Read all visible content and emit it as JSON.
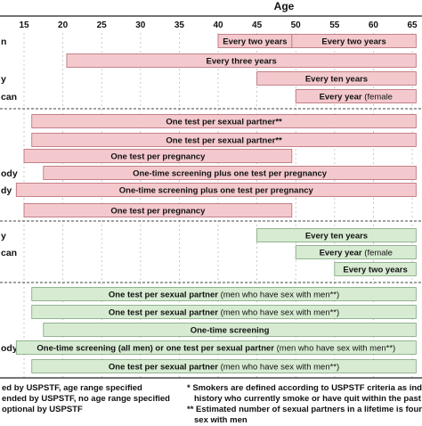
{
  "chart_data": {
    "type": "bar",
    "title": "",
    "xlabel": "Age",
    "ylabel": "",
    "xlim": [
      13,
      66
    ],
    "xticks": [
      15,
      20,
      25,
      30,
      35,
      40,
      45,
      50,
      55,
      60,
      65
    ],
    "colors": {
      "red_fill": "#f4c9cd",
      "red_edge": "#b46a72",
      "green_fill": "#d7ebd2",
      "green_edge": "#7da47a"
    },
    "row_labels": [
      "n",
      "",
      "y",
      "can",
      "",
      "",
      "",
      "ody",
      "dy",
      "",
      "y",
      "can",
      "",
      "",
      "",
      "",
      "ody",
      ""
    ],
    "bars": [
      {
        "row": 0,
        "color": "red",
        "start": 40,
        "end": 49.5,
        "label": "Every two years",
        "note": ""
      },
      {
        "row": 0,
        "color": "red",
        "start": 49.5,
        "end": 65.5,
        "label": "Every two years",
        "note": ""
      },
      {
        "row": 1,
        "color": "red",
        "start": 20.5,
        "end": 65.5,
        "label": "Every three years",
        "note": ""
      },
      {
        "row": 2,
        "color": "red",
        "start": 45,
        "end": 65.5,
        "label": "Every ten years",
        "note": ""
      },
      {
        "row": 3,
        "color": "red",
        "start": 50,
        "end": 65.5,
        "label": "Every year",
        "note": "(female"
      },
      {
        "row": 4,
        "color": "red",
        "start": 16,
        "end": 65.5,
        "label": "One test per sexual partner**",
        "note": ""
      },
      {
        "row": 5,
        "color": "red",
        "start": 16,
        "end": 65.5,
        "label": "One test per sexual partner**",
        "note": ""
      },
      {
        "row": 6,
        "color": "red",
        "start": 15,
        "end": 49.5,
        "label": "One test per pregnancy",
        "note": ""
      },
      {
        "row": 7,
        "color": "red",
        "start": 17.5,
        "end": 65.5,
        "label": "One-time screening plus one test per pregnancy",
        "note": ""
      },
      {
        "row": 8,
        "color": "red",
        "start": 14,
        "end": 65.5,
        "label": "One-time screening plus one test per pregnancy",
        "note": ""
      },
      {
        "row": 9,
        "color": "red",
        "start": 15,
        "end": 49.5,
        "label": "One test per pregnancy",
        "note": ""
      },
      {
        "row": 10,
        "color": "green",
        "start": 45,
        "end": 65.5,
        "label": "Every ten years",
        "note": ""
      },
      {
        "row": 11,
        "color": "green",
        "start": 50,
        "end": 65.5,
        "label": "Every year",
        "note": "(female"
      },
      {
        "row": 12,
        "color": "green",
        "start": 55,
        "end": 65.5,
        "label": "Every two years",
        "note": ""
      },
      {
        "row": 13,
        "color": "green",
        "start": 16,
        "end": 65.5,
        "label": "One test per sexual partner",
        "note": "(men who have sex with men**)"
      },
      {
        "row": 14,
        "color": "green",
        "start": 16,
        "end": 65.5,
        "label": "One test per sexual partner",
        "note": "(men who have sex with men**)"
      },
      {
        "row": 15,
        "color": "green",
        "start": 17.5,
        "end": 65.5,
        "label": "One-time screening",
        "note": ""
      },
      {
        "row": 16,
        "color": "green",
        "start": 14,
        "end": 65.5,
        "label": "One-time screening (all men) or one test per sexual partner",
        "note": "(men who have sex with men**)"
      },
      {
        "row": 17,
        "color": "green",
        "start": 16,
        "end": 65.5,
        "label": "One test per sexual partner",
        "note": "(men who have sex with men**)"
      }
    ]
  },
  "footnotes": {
    "left": [
      "ed by USPSTF, age range specified",
      "ended by USPSTF, no age range specified",
      "optional by USPSTF"
    ],
    "right": [
      "* Smokers are defined according to USPSTF criteria as ind",
      "history who currently smoke or have quit within the past",
      "** Estimated number of sexual partners in a lifetime is four",
      "sex with men"
    ]
  }
}
